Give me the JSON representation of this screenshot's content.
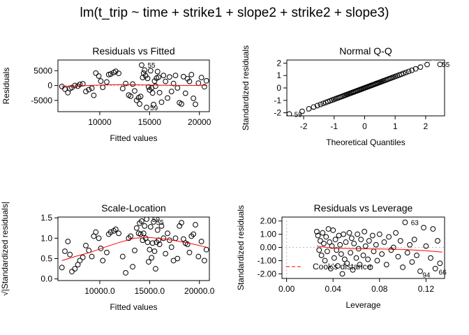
{
  "main_title": "lm(t_trip ~ time + strike1 + slope2 + strike2 + slope3)",
  "chart_data": [
    {
      "id": "rvf",
      "type": "scatter",
      "title": "Residuals vs Fitted",
      "xlabel": "Fitted values",
      "ylabel": "Residuals",
      "xlim": [
        5800,
        21000
      ],
      "ylim": [
        -8800,
        8600
      ],
      "xticks": [
        10000,
        15000,
        20000
      ],
      "yticks": [
        -5000,
        0,
        5000
      ],
      "point_color": "#000000",
      "smooth_color": "#ff0000",
      "points": [
        [
          6200,
          -300
        ],
        [
          6500,
          -1200
        ],
        [
          6800,
          -2400
        ],
        [
          7000,
          -1000
        ],
        [
          7200,
          -700
        ],
        [
          7500,
          0
        ],
        [
          7800,
          -200
        ],
        [
          8000,
          400
        ],
        [
          8300,
          600
        ],
        [
          8600,
          -2000
        ],
        [
          8900,
          -1400
        ],
        [
          9200,
          -900
        ],
        [
          9400,
          -3300
        ],
        [
          9600,
          4200
        ],
        [
          9900,
          3200
        ],
        [
          10100,
          1500
        ],
        [
          10300,
          -600
        ],
        [
          10700,
          1200
        ],
        [
          10900,
          3700
        ],
        [
          11100,
          3900
        ],
        [
          11400,
          4400
        ],
        [
          11600,
          4800
        ],
        [
          11900,
          4100
        ],
        [
          12300,
          -1000
        ],
        [
          12600,
          700
        ],
        [
          12900,
          -3200
        ],
        [
          13100,
          -3600
        ],
        [
          13300,
          500
        ],
        [
          13500,
          -1800
        ],
        [
          13700,
          -5000
        ],
        [
          13900,
          -4100
        ],
        [
          14000,
          -6200
        ],
        [
          14100,
          -3700
        ],
        [
          14200,
          6900
        ],
        [
          14300,
          2700
        ],
        [
          14400,
          4200
        ],
        [
          14500,
          5200
        ],
        [
          14600,
          3300
        ],
        [
          14700,
          -7400
        ],
        [
          14800,
          2400
        ],
        [
          14900,
          -500
        ],
        [
          15000,
          -1500
        ],
        [
          15100,
          5000
        ],
        [
          15200,
          -800
        ],
        [
          15300,
          -2500
        ],
        [
          15400,
          -6400
        ],
        [
          15500,
          1500
        ],
        [
          15600,
          -200
        ],
        [
          15700,
          2500
        ],
        [
          15800,
          4700
        ],
        [
          15900,
          2800
        ],
        [
          16000,
          -2400
        ],
        [
          16200,
          -5600
        ],
        [
          16400,
          3400
        ],
        [
          16600,
          1400
        ],
        [
          16800,
          -4200
        ],
        [
          17000,
          2900
        ],
        [
          17200,
          -2000
        ],
        [
          17400,
          700
        ],
        [
          17600,
          3400
        ],
        [
          17800,
          -800
        ],
        [
          18000,
          -5800
        ],
        [
          18200,
          -6200
        ],
        [
          18400,
          3000
        ],
        [
          18600,
          -2600
        ],
        [
          18800,
          2300
        ],
        [
          19000,
          1400
        ],
        [
          19200,
          3700
        ],
        [
          19400,
          -4300
        ],
        [
          19600,
          -6300
        ],
        [
          19900,
          800
        ],
        [
          20200,
          2700
        ],
        [
          20500,
          -400
        ],
        [
          20700,
          1600
        ]
      ],
      "smooth": [
        [
          6200,
          -300
        ],
        [
          8000,
          -100
        ],
        [
          10000,
          150
        ],
        [
          12000,
          300
        ],
        [
          13500,
          250
        ],
        [
          15000,
          150
        ],
        [
          16500,
          100
        ],
        [
          18000,
          50
        ],
        [
          19500,
          50
        ],
        [
          20700,
          100
        ]
      ],
      "labels": [
        {
          "text": "55",
          "x": 14450,
          "y": 6900
        },
        {
          "text": "59",
          "x": 14700,
          "y": -7400
        }
      ]
    },
    {
      "id": "qq",
      "type": "scatter",
      "title": "Normal Q-Q",
      "xlabel": "Theoretical Quantiles",
      "ylabel": "Standardized residuals",
      "xlim": [
        -2.55,
        2.62
      ],
      "ylim": [
        -2.25,
        2.25
      ],
      "xticks": [
        -2,
        -1,
        0,
        1,
        2
      ],
      "yticks": [
        -2,
        -1,
        0,
        1,
        2
      ],
      "point_color": "#000000",
      "refline_color": "#999999",
      "refline": {
        "intercept": 0,
        "slope": 1
      },
      "labels": [
        {
          "text": "55",
          "x": 2.42,
          "y": 1.9
        },
        {
          "text": "59",
          "x": -2.42,
          "y": -2.1
        }
      ]
    },
    {
      "id": "sl",
      "type": "scatter",
      "title": "Scale-Location",
      "xlabel": "Fitted values",
      "ylabel": "√|Standardized residuals|",
      "xlim": [
        5800,
        21000
      ],
      "ylim": [
        -0.04,
        1.52
      ],
      "xticks": [
        10000,
        15000,
        20000
      ],
      "yticks": [
        0.0,
        0.5,
        1.0,
        1.5
      ],
      "point_color": "#000000",
      "smooth_color": "#ff0000",
      "points": [
        [
          6200,
          0.28
        ],
        [
          6500,
          0.68
        ],
        [
          6800,
          0.92
        ],
        [
          7000,
          0.6
        ],
        [
          7200,
          0.18
        ],
        [
          7500,
          0.25
        ],
        [
          7800,
          0.35
        ],
        [
          8000,
          0.45
        ],
        [
          8300,
          0.53
        ],
        [
          8600,
          0.82
        ],
        [
          8900,
          0.7
        ],
        [
          9200,
          0.55
        ],
        [
          9400,
          1.05
        ],
        [
          9600,
          1.15
        ],
        [
          9900,
          1.0
        ],
        [
          10100,
          0.75
        ],
        [
          10300,
          0.45
        ],
        [
          10700,
          0.65
        ],
        [
          10900,
          1.1
        ],
        [
          11100,
          1.15
        ],
        [
          11400,
          1.18
        ],
        [
          11600,
          1.22
        ],
        [
          11900,
          1.12
        ],
        [
          12300,
          0.55
        ],
        [
          12600,
          0.15
        ],
        [
          12900,
          1.0
        ],
        [
          13100,
          1.05
        ],
        [
          13300,
          0.3
        ],
        [
          13500,
          0.7
        ],
        [
          13700,
          1.25
        ],
        [
          13900,
          1.12
        ],
        [
          14000,
          1.37
        ],
        [
          14100,
          1.1
        ],
        [
          14200,
          1.42
        ],
        [
          14300,
          0.95
        ],
        [
          14400,
          1.12
        ],
        [
          14500,
          1.3
        ],
        [
          14600,
          1.0
        ],
        [
          14700,
          1.47
        ],
        [
          14800,
          0.9
        ],
        [
          14900,
          0.42
        ],
        [
          15000,
          0.72
        ],
        [
          15100,
          1.28
        ],
        [
          15200,
          0.52
        ],
        [
          15300,
          0.88
        ],
        [
          15400,
          1.4
        ],
        [
          15500,
          0.68
        ],
        [
          15600,
          0.25
        ],
        [
          15700,
          0.9
        ],
        [
          15800,
          1.2
        ],
        [
          15900,
          0.95
        ],
        [
          16000,
          0.85
        ],
        [
          16200,
          1.3
        ],
        [
          16400,
          1.0
        ],
        [
          16600,
          0.62
        ],
        [
          16800,
          1.12
        ],
        [
          17000,
          0.95
        ],
        [
          17200,
          0.78
        ],
        [
          17400,
          0.45
        ],
        [
          17600,
          1.0
        ],
        [
          17800,
          0.5
        ],
        [
          18000,
          1.3
        ],
        [
          18200,
          1.38
        ],
        [
          18400,
          0.98
        ],
        [
          18600,
          0.88
        ],
        [
          18800,
          0.85
        ],
        [
          19000,
          0.65
        ],
        [
          19200,
          1.05
        ],
        [
          19400,
          1.1
        ],
        [
          19600,
          1.33
        ],
        [
          19900,
          0.55
        ],
        [
          20200,
          0.92
        ],
        [
          20500,
          0.45
        ],
        [
          20700,
          0.72
        ]
      ],
      "smooth": [
        [
          6200,
          0.45
        ],
        [
          7500,
          0.55
        ],
        [
          9000,
          0.65
        ],
        [
          10500,
          0.78
        ],
        [
          12000,
          0.9
        ],
        [
          13500,
          1.0
        ],
        [
          15000,
          1.02
        ],
        [
          16500,
          0.98
        ],
        [
          18000,
          0.92
        ],
        [
          19500,
          0.85
        ],
        [
          20700,
          0.78
        ]
      ],
      "labels": [
        {
          "text": "59",
          "x": 14900,
          "y": 1.47
        },
        {
          "text": "55",
          "x": 15300,
          "y": 1.4
        }
      ]
    },
    {
      "id": "rvl",
      "type": "scatter",
      "title": "Residuals vs Leverage",
      "xlabel": "Leverage",
      "ylabel": "Standardized residuals",
      "xlim": [
        -0.004,
        0.136
      ],
      "ylim": [
        -2.35,
        2.3
      ],
      "xticks": [
        0.0,
        0.04,
        0.08,
        0.12
      ],
      "yticks": [
        -2,
        -1,
        0,
        1,
        2
      ],
      "point_color": "#000000",
      "smooth_color": "#ff0000",
      "grid_color": "#bbbbbb",
      "legend_text": "Cook's distance",
      "legend_color": "#ff0000",
      "points": [
        [
          0.026,
          1.2
        ],
        [
          0.027,
          0.9
        ],
        [
          0.028,
          -0.2
        ],
        [
          0.029,
          0.5
        ],
        [
          0.03,
          -0.6
        ],
        [
          0.031,
          1.1
        ],
        [
          0.032,
          0.3
        ],
        [
          0.033,
          -1.0
        ],
        [
          0.034,
          0.8
        ],
        [
          0.035,
          -0.3
        ],
        [
          0.036,
          1.4
        ],
        [
          0.037,
          0.4
        ],
        [
          0.038,
          -1.6
        ],
        [
          0.039,
          0.1
        ],
        [
          0.04,
          1.3
        ],
        [
          0.041,
          -0.8
        ],
        [
          0.042,
          0.6
        ],
        [
          0.043,
          -0.2
        ],
        [
          0.044,
          -1.4
        ],
        [
          0.045,
          0.9
        ],
        [
          0.046,
          0.2
        ],
        [
          0.047,
          -0.5
        ],
        [
          0.048,
          -2.0
        ],
        [
          0.049,
          1.0
        ],
        [
          0.05,
          -0.9
        ],
        [
          0.051,
          0.4
        ],
        [
          0.052,
          -1.2
        ],
        [
          0.054,
          1.1
        ],
        [
          0.055,
          -0.4
        ],
        [
          0.056,
          0.7
        ],
        [
          0.057,
          -1.7
        ],
        [
          0.058,
          0.3
        ],
        [
          0.06,
          -0.8
        ],
        [
          0.061,
          1.0
        ],
        [
          0.062,
          -0.1
        ],
        [
          0.063,
          -1.3
        ],
        [
          0.064,
          0.6
        ],
        [
          0.066,
          -0.6
        ],
        [
          0.067,
          1.2
        ],
        [
          0.068,
          0.1
        ],
        [
          0.07,
          -0.9
        ],
        [
          0.071,
          0.5
        ],
        [
          0.072,
          -1.5
        ],
        [
          0.074,
          0.9
        ],
        [
          0.075,
          -0.3
        ],
        [
          0.077,
          0.2
        ],
        [
          0.078,
          -1.0
        ],
        [
          0.08,
          1.0
        ],
        [
          0.082,
          -0.5
        ],
        [
          0.084,
          0.4
        ],
        [
          0.086,
          -1.3
        ],
        [
          0.088,
          0.8
        ],
        [
          0.09,
          -0.2
        ],
        [
          0.092,
          0.0
        ],
        [
          0.094,
          1.1
        ],
        [
          0.096,
          -0.7
        ],
        [
          0.098,
          0.5
        ],
        [
          0.1,
          -1.5
        ],
        [
          0.102,
          1.9
        ],
        [
          0.104,
          -0.4
        ],
        [
          0.106,
          0.2
        ],
        [
          0.108,
          -1.1
        ],
        [
          0.11,
          0.6
        ],
        [
          0.112,
          -0.6
        ],
        [
          0.115,
          -1.8
        ],
        [
          0.118,
          1.5
        ],
        [
          0.12,
          0.1
        ],
        [
          0.124,
          -0.8
        ],
        [
          0.126,
          1.4
        ],
        [
          0.128,
          -1.6
        ],
        [
          0.13,
          0.5
        ],
        [
          0.132,
          -1.2
        ]
      ],
      "smooth": [
        [
          0.026,
          0.1
        ],
        [
          0.04,
          -0.05
        ],
        [
          0.06,
          -0.1
        ],
        [
          0.08,
          -0.12
        ],
        [
          0.1,
          -0.15
        ],
        [
          0.12,
          -0.25
        ],
        [
          0.134,
          -0.35
        ]
      ],
      "labels": [
        {
          "text": "63",
          "x": 0.104,
          "y": 1.9
        },
        {
          "text": "94",
          "x": 0.114,
          "y": -2.05
        },
        {
          "text": "66",
          "x": 0.128,
          "y": -1.85
        }
      ]
    }
  ]
}
